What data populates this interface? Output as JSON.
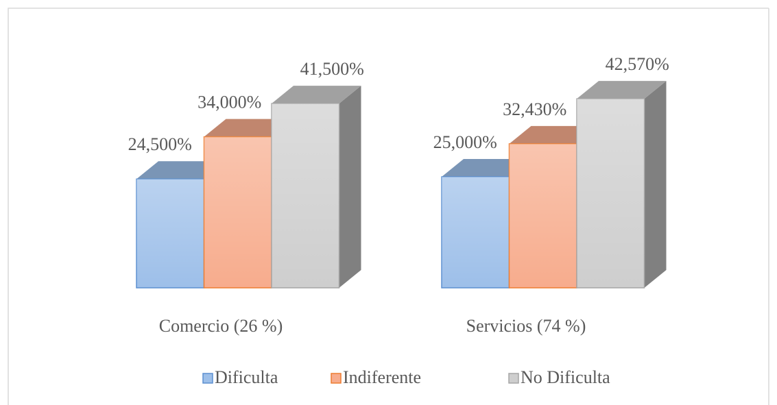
{
  "chart_data": {
    "type": "bar3d",
    "categories": [
      "Comercio (26 %)",
      "Servicios (74 %)"
    ],
    "series": [
      {
        "name": "Dificulta",
        "color": "#9dbfe9",
        "edge": "#5b8fd0",
        "values": [
          24.5,
          25
        ],
        "value_labels": [
          "24,500%",
          "25,000%"
        ]
      },
      {
        "name": "Indiferente",
        "color": "#f7ac8d",
        "edge": "#ed7d31",
        "values": [
          34,
          32.43
        ],
        "value_labels": [
          "34,000%",
          "32,430%"
        ]
      },
      {
        "name": "No Dificulta",
        "color": "#cecece",
        "edge": "#a5a5a5",
        "values": [
          41.5,
          42.57
        ],
        "value_labels": [
          "41,500%",
          "42,570%"
        ]
      }
    ]
  }
}
